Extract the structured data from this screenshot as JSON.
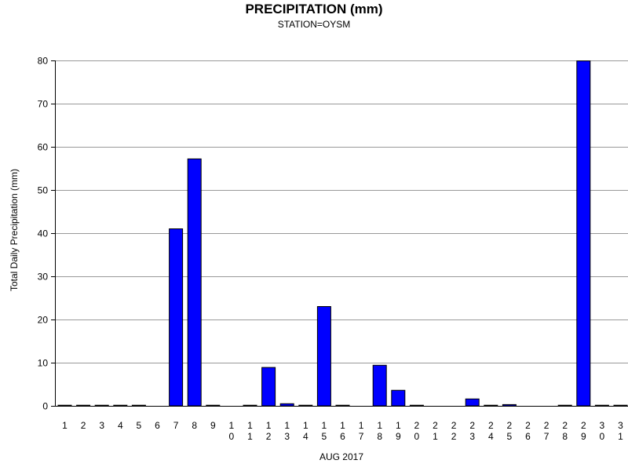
{
  "chart_data": {
    "type": "bar",
    "title": "PRECIPITATION (mm)",
    "subtitle": "STATION=OYSM",
    "xlabel": "AUG 2017",
    "ylabel": "Total Daily Precipitation (mm)",
    "ylim": [
      0,
      80
    ],
    "yticks": [
      0,
      10,
      20,
      30,
      40,
      50,
      60,
      70,
      80
    ],
    "grid": true,
    "bar_color": "#0000ff",
    "categories": [
      "1",
      "2",
      "3",
      "4",
      "5",
      "6",
      "7",
      "8",
      "9",
      "10",
      "11",
      "12",
      "13",
      "14",
      "15",
      "16",
      "17",
      "18",
      "19",
      "20",
      "21",
      "22",
      "23",
      "24",
      "25",
      "26",
      "27",
      "28",
      "29",
      "30",
      "31"
    ],
    "values": [
      0.1,
      0.1,
      0.1,
      0.1,
      0.1,
      null,
      41.0,
      57.2,
      0.1,
      null,
      0.1,
      8.9,
      0.5,
      0.1,
      23.0,
      0.1,
      null,
      9.4,
      3.6,
      0.1,
      null,
      null,
      1.6,
      0.1,
      0.3,
      null,
      null,
      0.1,
      79.9,
      0.1,
      0.1
    ]
  }
}
